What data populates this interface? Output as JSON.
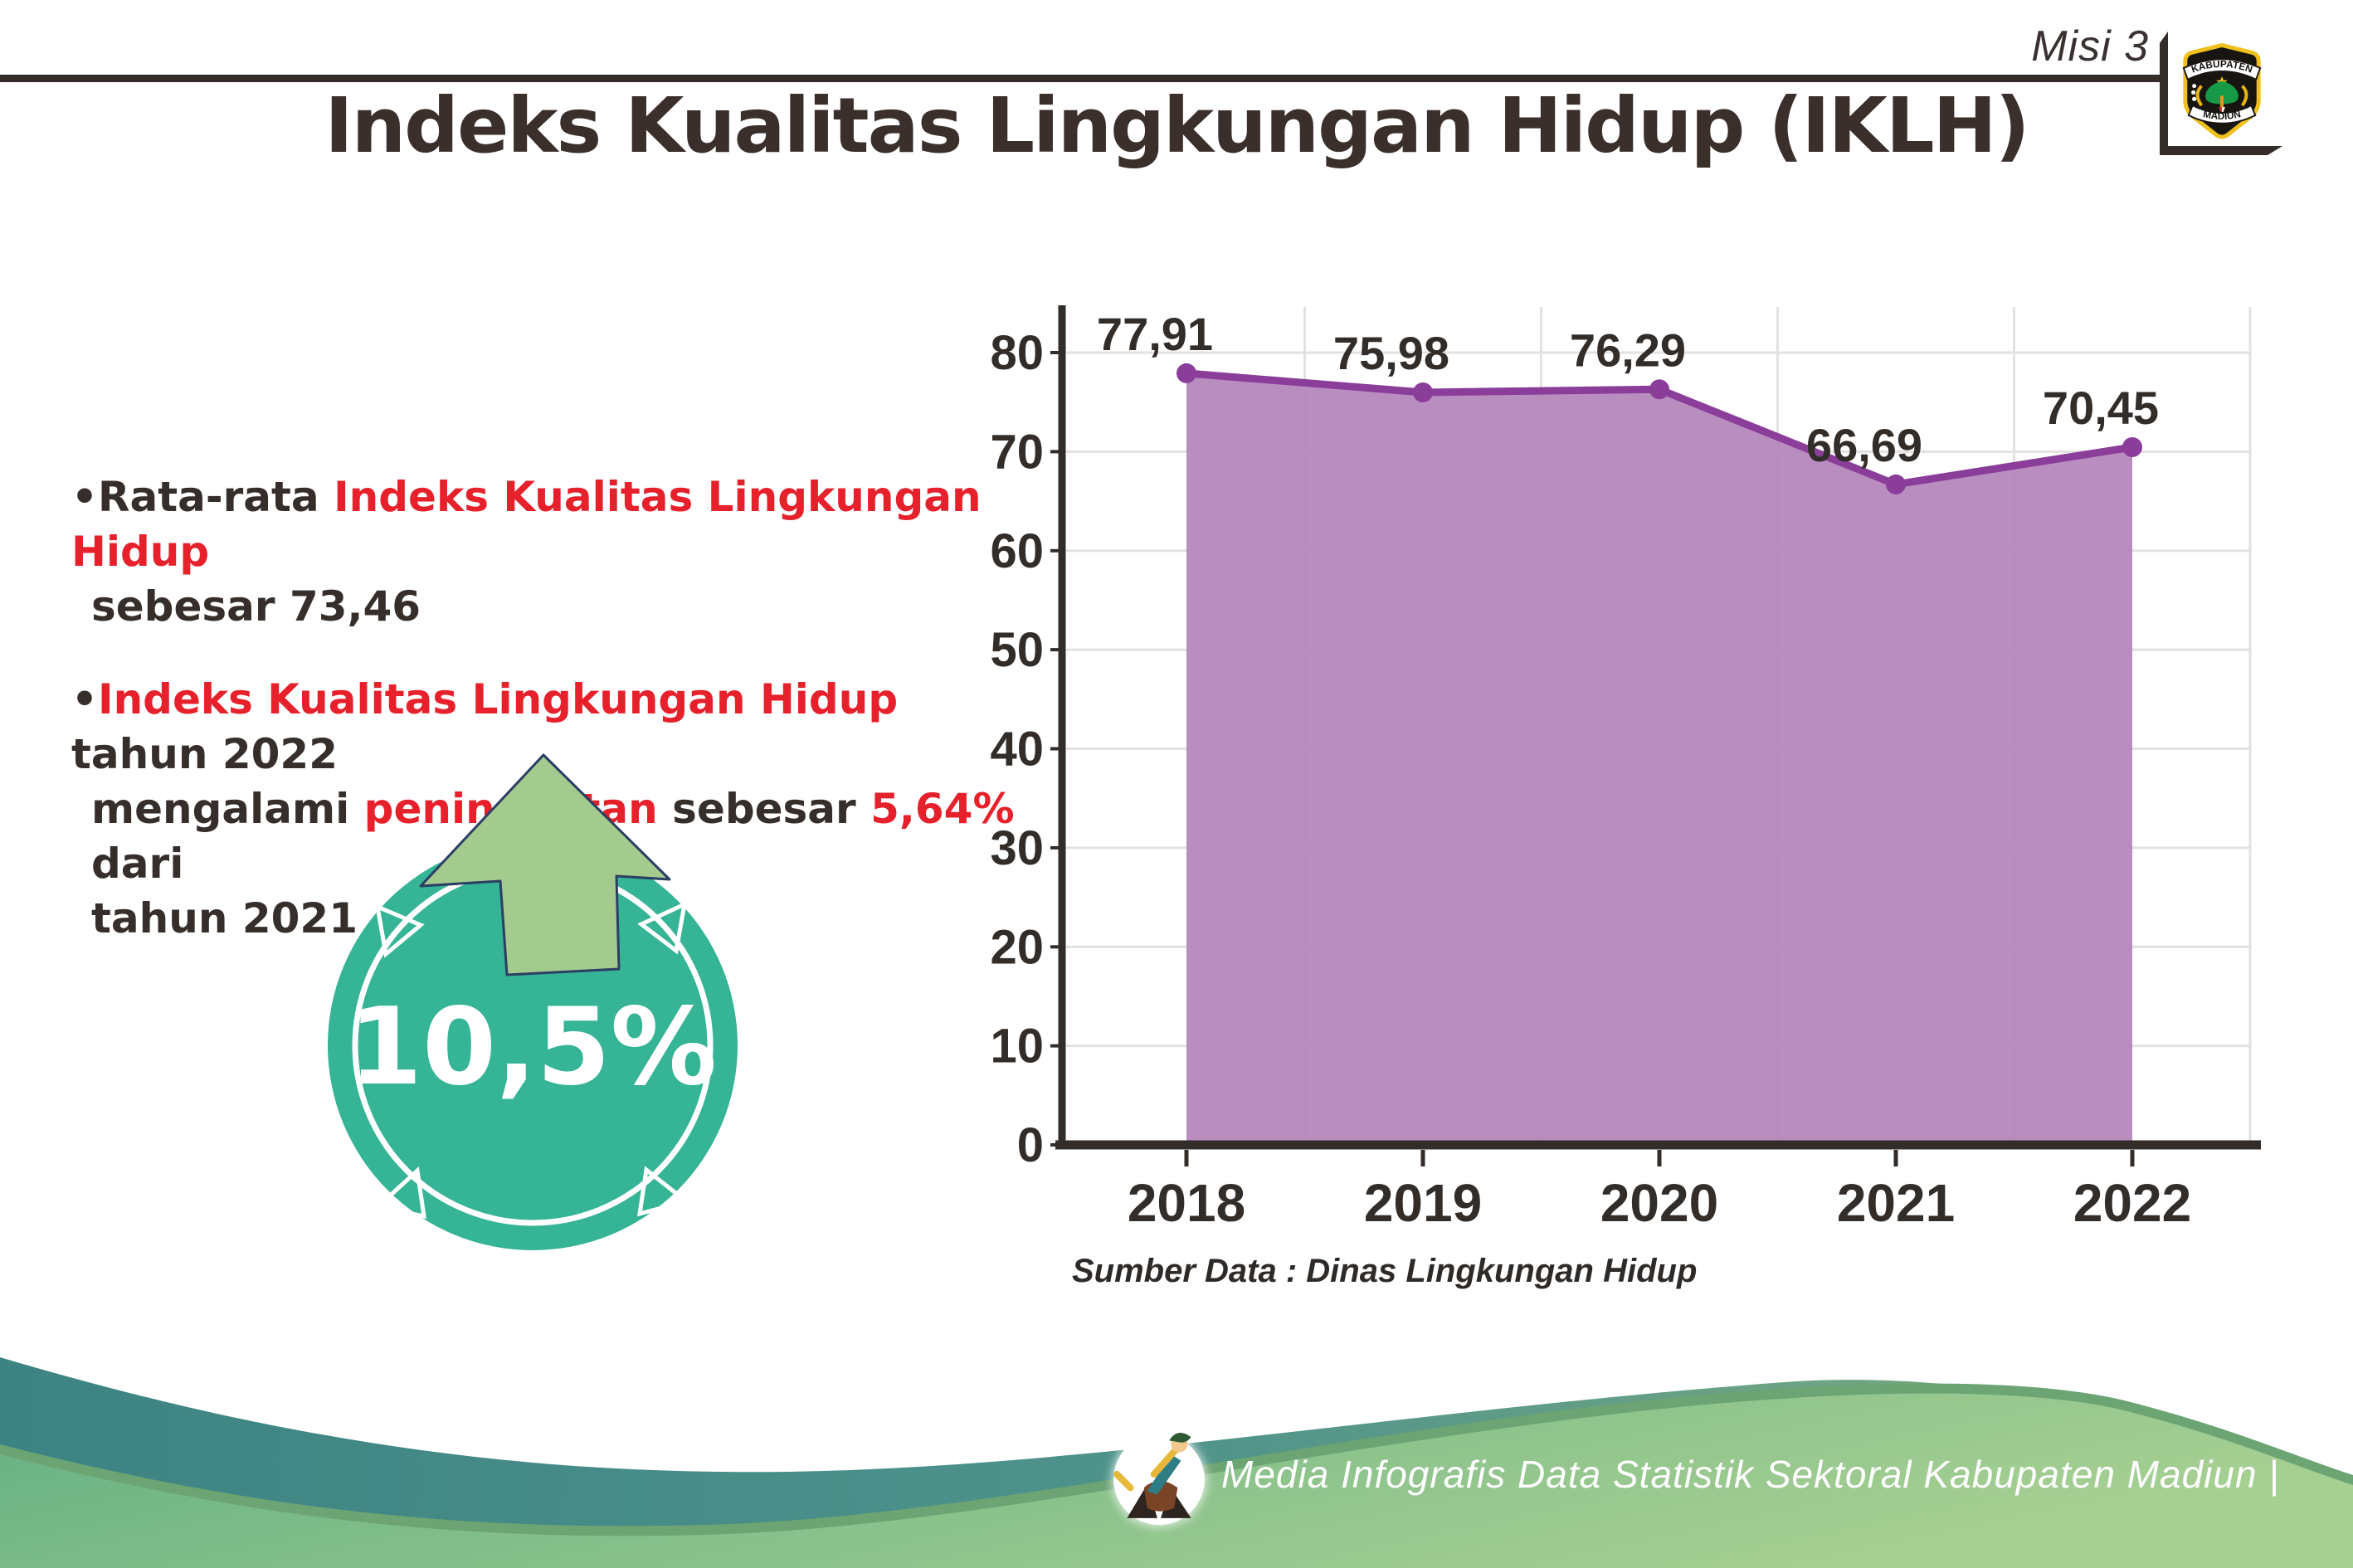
{
  "header": {
    "misi_label": "Misi 3",
    "logo": {
      "top_text": "KABUPATEN",
      "bottom_text": "MADIUN"
    }
  },
  "title": "Indeks Kualitas Lingkungan Hidup (IKLH)",
  "bullets": {
    "items": [
      {
        "lines": [
          [
            {
              "t": "•",
              "c": "dark"
            },
            {
              "t": "Rata-rata ",
              "c": "dark"
            },
            {
              "t": "Indeks Kualitas Lingkungan Hidup",
              "c": "red"
            }
          ],
          [
            {
              "t": "sebesar 73,46",
              "c": "dark"
            }
          ]
        ]
      },
      {
        "lines": [
          [
            {
              "t": "•",
              "c": "dark"
            },
            {
              "t": "Indeks Kualitas Lingkungan Hidup",
              "c": "red"
            },
            {
              "t": " tahun 2022",
              "c": "dark"
            }
          ],
          [
            {
              "t": "mengalami ",
              "c": "dark"
            },
            {
              "t": "peningkatan",
              "c": "red"
            },
            {
              "t": " sebesar ",
              "c": "dark"
            },
            {
              "t": "5,64%",
              "c": "red"
            },
            {
              "t": " dari",
              "c": "dark"
            }
          ],
          [
            {
              "t": "tahun 2021",
              "c": "dark"
            }
          ]
        ]
      }
    ]
  },
  "badge": {
    "value": "10,5%"
  },
  "chart_data": {
    "type": "area",
    "categories": [
      "2018",
      "2019",
      "2020",
      "2021",
      "2022"
    ],
    "values": [
      77.91,
      75.98,
      76.29,
      66.69,
      70.45
    ],
    "value_labels": [
      "77,91",
      "75,98",
      "76,29",
      "66,69",
      "70,45"
    ],
    "series_name": "Indeks Kualitas Lingkungan Hidup (IKLH)",
    "xlabel": "",
    "ylabel": "",
    "ylim": [
      0,
      85
    ],
    "yticks": [
      0,
      10,
      20,
      30,
      40,
      50,
      60,
      70,
      80
    ],
    "grid": true,
    "legend": false,
    "line_color": "#8a3e99",
    "fill_color": "#b584bc",
    "marker": "circle"
  },
  "source_note": "Sumber Data : Dinas Lingkungan Hidup",
  "footer": {
    "caption": "Media Infografis Data Statistik Sektoral Kabupaten Madiun |"
  },
  "colors": {
    "text_dark": "#362e2b",
    "accent_red": "#e6212b",
    "axis_dark": "#332d2a",
    "chart_line": "#8a3e99",
    "chart_fill": "#b584bc",
    "badge_teal": "#35b496",
    "arrow_green": "#a4cb8e",
    "arrow_outline_navy": "#2c3e64",
    "wave_teal": "#3c8383",
    "wave_green": "#6cb183",
    "logo_gold": "#f0c01c",
    "logo_tree_green": "#179a47"
  }
}
